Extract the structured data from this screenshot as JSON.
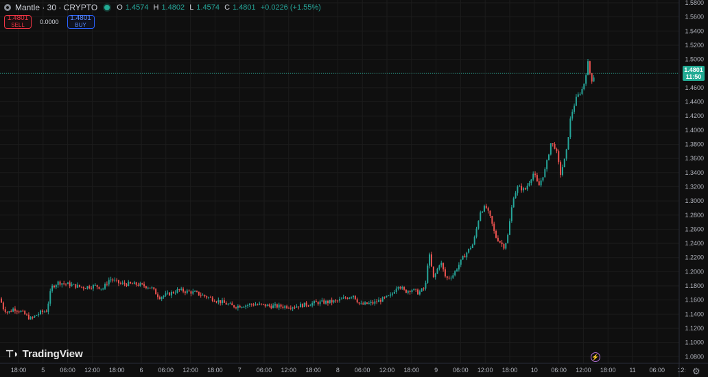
{
  "header": {
    "symbol_title": "Mantle · 30 · CRYPTO",
    "o_key": "O",
    "o_val": "1.4574",
    "h_key": "H",
    "h_val": "1.4802",
    "l_key": "L",
    "l_val": "1.4574",
    "c_key": "C",
    "c_val": "1.4801",
    "change": "+0.0226 (+1.55%)"
  },
  "trade": {
    "sell_price": "1.4801",
    "sell_label": "SELL",
    "spread": "0.0000",
    "buy_price": "1.4801",
    "buy_label": "BUY"
  },
  "last_price": {
    "price": "1.4801",
    "countdown": "11:50"
  },
  "branding": {
    "logo_text": "TradingView"
  },
  "colors": {
    "up": "#26a69a",
    "down": "#ef5350",
    "background": "#0f0f0f",
    "grid": "#1c1c1c",
    "last_price_line": "#22ab94"
  },
  "chart_data": {
    "type": "candlestick",
    "ylim": [
      1.07,
      1.59
    ],
    "y_ticks": [
      "1.5800",
      "1.5600",
      "1.5400",
      "1.5200",
      "1.5000",
      "1.4800",
      "1.4600",
      "1.4400",
      "1.4200",
      "1.4000",
      "1.3800",
      "1.3600",
      "1.3400",
      "1.3200",
      "1.3000",
      "1.2800",
      "1.2600",
      "1.2400",
      "1.2200",
      "1.2000",
      "1.1800",
      "1.1600",
      "1.1400",
      "1.1200",
      "1.1000",
      "1.0800"
    ],
    "x_ticks": [
      "18:00",
      "5",
      "06:00",
      "12:00",
      "18:00",
      "6",
      "06:00",
      "12:00",
      "18:00",
      "7",
      "06:00",
      "12:00",
      "18:00",
      "8",
      "06:00",
      "12:00",
      "18:00",
      "9",
      "06:00",
      "12:00",
      "18:00",
      "10",
      "06:00",
      "12:00",
      "18:00",
      "11",
      "06:00",
      "12:"
    ],
    "last_price": 1.4801,
    "price_path": [
      [
        0,
        1.162
      ],
      [
        5,
        1.148
      ],
      [
        12,
        1.142
      ],
      [
        20,
        1.148
      ],
      [
        30,
        1.144
      ],
      [
        45,
        1.133
      ],
      [
        58,
        1.142
      ],
      [
        68,
        1.145
      ],
      [
        75,
        1.178
      ],
      [
        85,
        1.185
      ],
      [
        100,
        1.182
      ],
      [
        120,
        1.178
      ],
      [
        140,
        1.18
      ],
      [
        150,
        1.176
      ],
      [
        160,
        1.19
      ],
      [
        175,
        1.183
      ],
      [
        200,
        1.182
      ],
      [
        220,
        1.178
      ],
      [
        232,
        1.164
      ],
      [
        245,
        1.168
      ],
      [
        260,
        1.174
      ],
      [
        285,
        1.17
      ],
      [
        300,
        1.165
      ],
      [
        320,
        1.158
      ],
      [
        340,
        1.151
      ],
      [
        370,
        1.154
      ],
      [
        400,
        1.151
      ],
      [
        430,
        1.151
      ],
      [
        460,
        1.156
      ],
      [
        490,
        1.158
      ],
      [
        515,
        1.167
      ],
      [
        525,
        1.153
      ],
      [
        545,
        1.156
      ],
      [
        570,
        1.166
      ],
      [
        580,
        1.182
      ],
      [
        590,
        1.172
      ],
      [
        600,
        1.175
      ],
      [
        610,
        1.17
      ],
      [
        620,
        1.178
      ],
      [
        625,
        1.228
      ],
      [
        632,
        1.19
      ],
      [
        642,
        1.215
      ],
      [
        650,
        1.19
      ],
      [
        660,
        1.195
      ],
      [
        675,
        1.22
      ],
      [
        690,
        1.24
      ],
      [
        700,
        1.285
      ],
      [
        708,
        1.292
      ],
      [
        715,
        1.275
      ],
      [
        722,
        1.25
      ],
      [
        735,
        1.235
      ],
      [
        740,
        1.25
      ],
      [
        748,
        1.305
      ],
      [
        755,
        1.32
      ],
      [
        765,
        1.315
      ],
      [
        778,
        1.34
      ],
      [
        785,
        1.32
      ],
      [
        795,
        1.345
      ],
      [
        803,
        1.382
      ],
      [
        810,
        1.375
      ],
      [
        817,
        1.338
      ],
      [
        825,
        1.365
      ],
      [
        832,
        1.42
      ],
      [
        840,
        1.445
      ],
      [
        850,
        1.46
      ],
      [
        857,
        1.495
      ],
      [
        862,
        1.47
      ],
      [
        868,
        1.48
      ]
    ]
  }
}
